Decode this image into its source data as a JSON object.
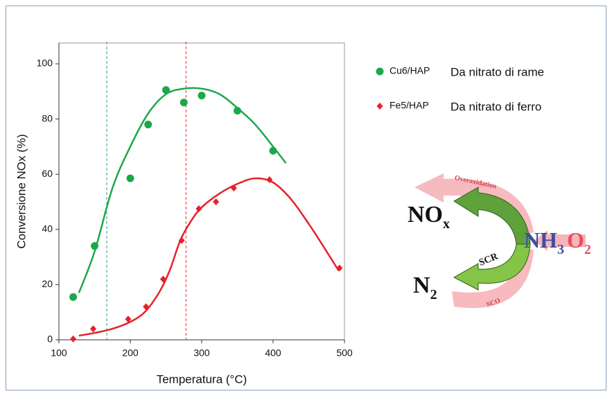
{
  "chart_data": {
    "type": "scatter",
    "xlabel": "Temperatura  (°C)",
    "ylabel": "Conversione NOx  (%)",
    "xlim": [
      100,
      500
    ],
    "ylim": [
      0,
      100
    ],
    "xticks": [
      100,
      200,
      300,
      400,
      500
    ],
    "yticks": [
      0,
      20,
      40,
      60,
      80,
      100
    ],
    "grid": false,
    "series": [
      {
        "name": "Cu6/HAP",
        "annotation": "Da nitrato di rame",
        "marker": "circle",
        "color": "#1aa84a",
        "x": [
          120,
          150,
          200,
          225,
          250,
          275,
          300,
          350,
          400
        ],
        "values": [
          15.5,
          34,
          58.5,
          78,
          90.5,
          86,
          88.5,
          83,
          68.5
        ],
        "fit_x": [
          128,
          150,
          175,
          200,
          225,
          250,
          275,
          300,
          325,
          350,
          375,
          400,
          418
        ],
        "fit_values": [
          17,
          32,
          55,
          70,
          82,
          89,
          91,
          91,
          89,
          84,
          78,
          70,
          64
        ]
      },
      {
        "name": "Fe5/HAP",
        "annotation": "Da nitrato di ferro",
        "marker": "diamond",
        "color": "#e8202a",
        "x": [
          120,
          148,
          197,
          222,
          246,
          272,
          296,
          320,
          345,
          395,
          493
        ],
        "values": [
          0.3,
          4,
          7.5,
          12,
          22,
          36,
          47.5,
          50,
          55,
          58,
          26
        ],
        "fit_x": [
          128,
          150,
          175,
          200,
          220,
          240,
          255,
          270,
          285,
          300,
          325,
          350,
          375,
          400,
          425,
          450,
          475,
          492
        ],
        "fit_values": [
          1.5,
          2.5,
          4,
          6.5,
          10,
          17,
          25,
          36,
          43,
          48,
          53,
          56.5,
          58.5,
          57,
          51,
          42,
          32,
          25
        ]
      }
    ],
    "reference_lines": [
      {
        "x": 167,
        "color": "#2aa07a"
      },
      {
        "x": 278,
        "color": "#e53030"
      }
    ]
  },
  "diagram": {
    "nox": {
      "text": "NO",
      "sub": "x"
    },
    "nh3": {
      "text": "NH",
      "sub": "3"
    },
    "o2": {
      "text": "O",
      "sub": "2"
    },
    "n2": {
      "text": "N",
      "sub": "2"
    },
    "scr": "SCR",
    "sco": "SCO",
    "overoxidation": "Overoxidation"
  }
}
